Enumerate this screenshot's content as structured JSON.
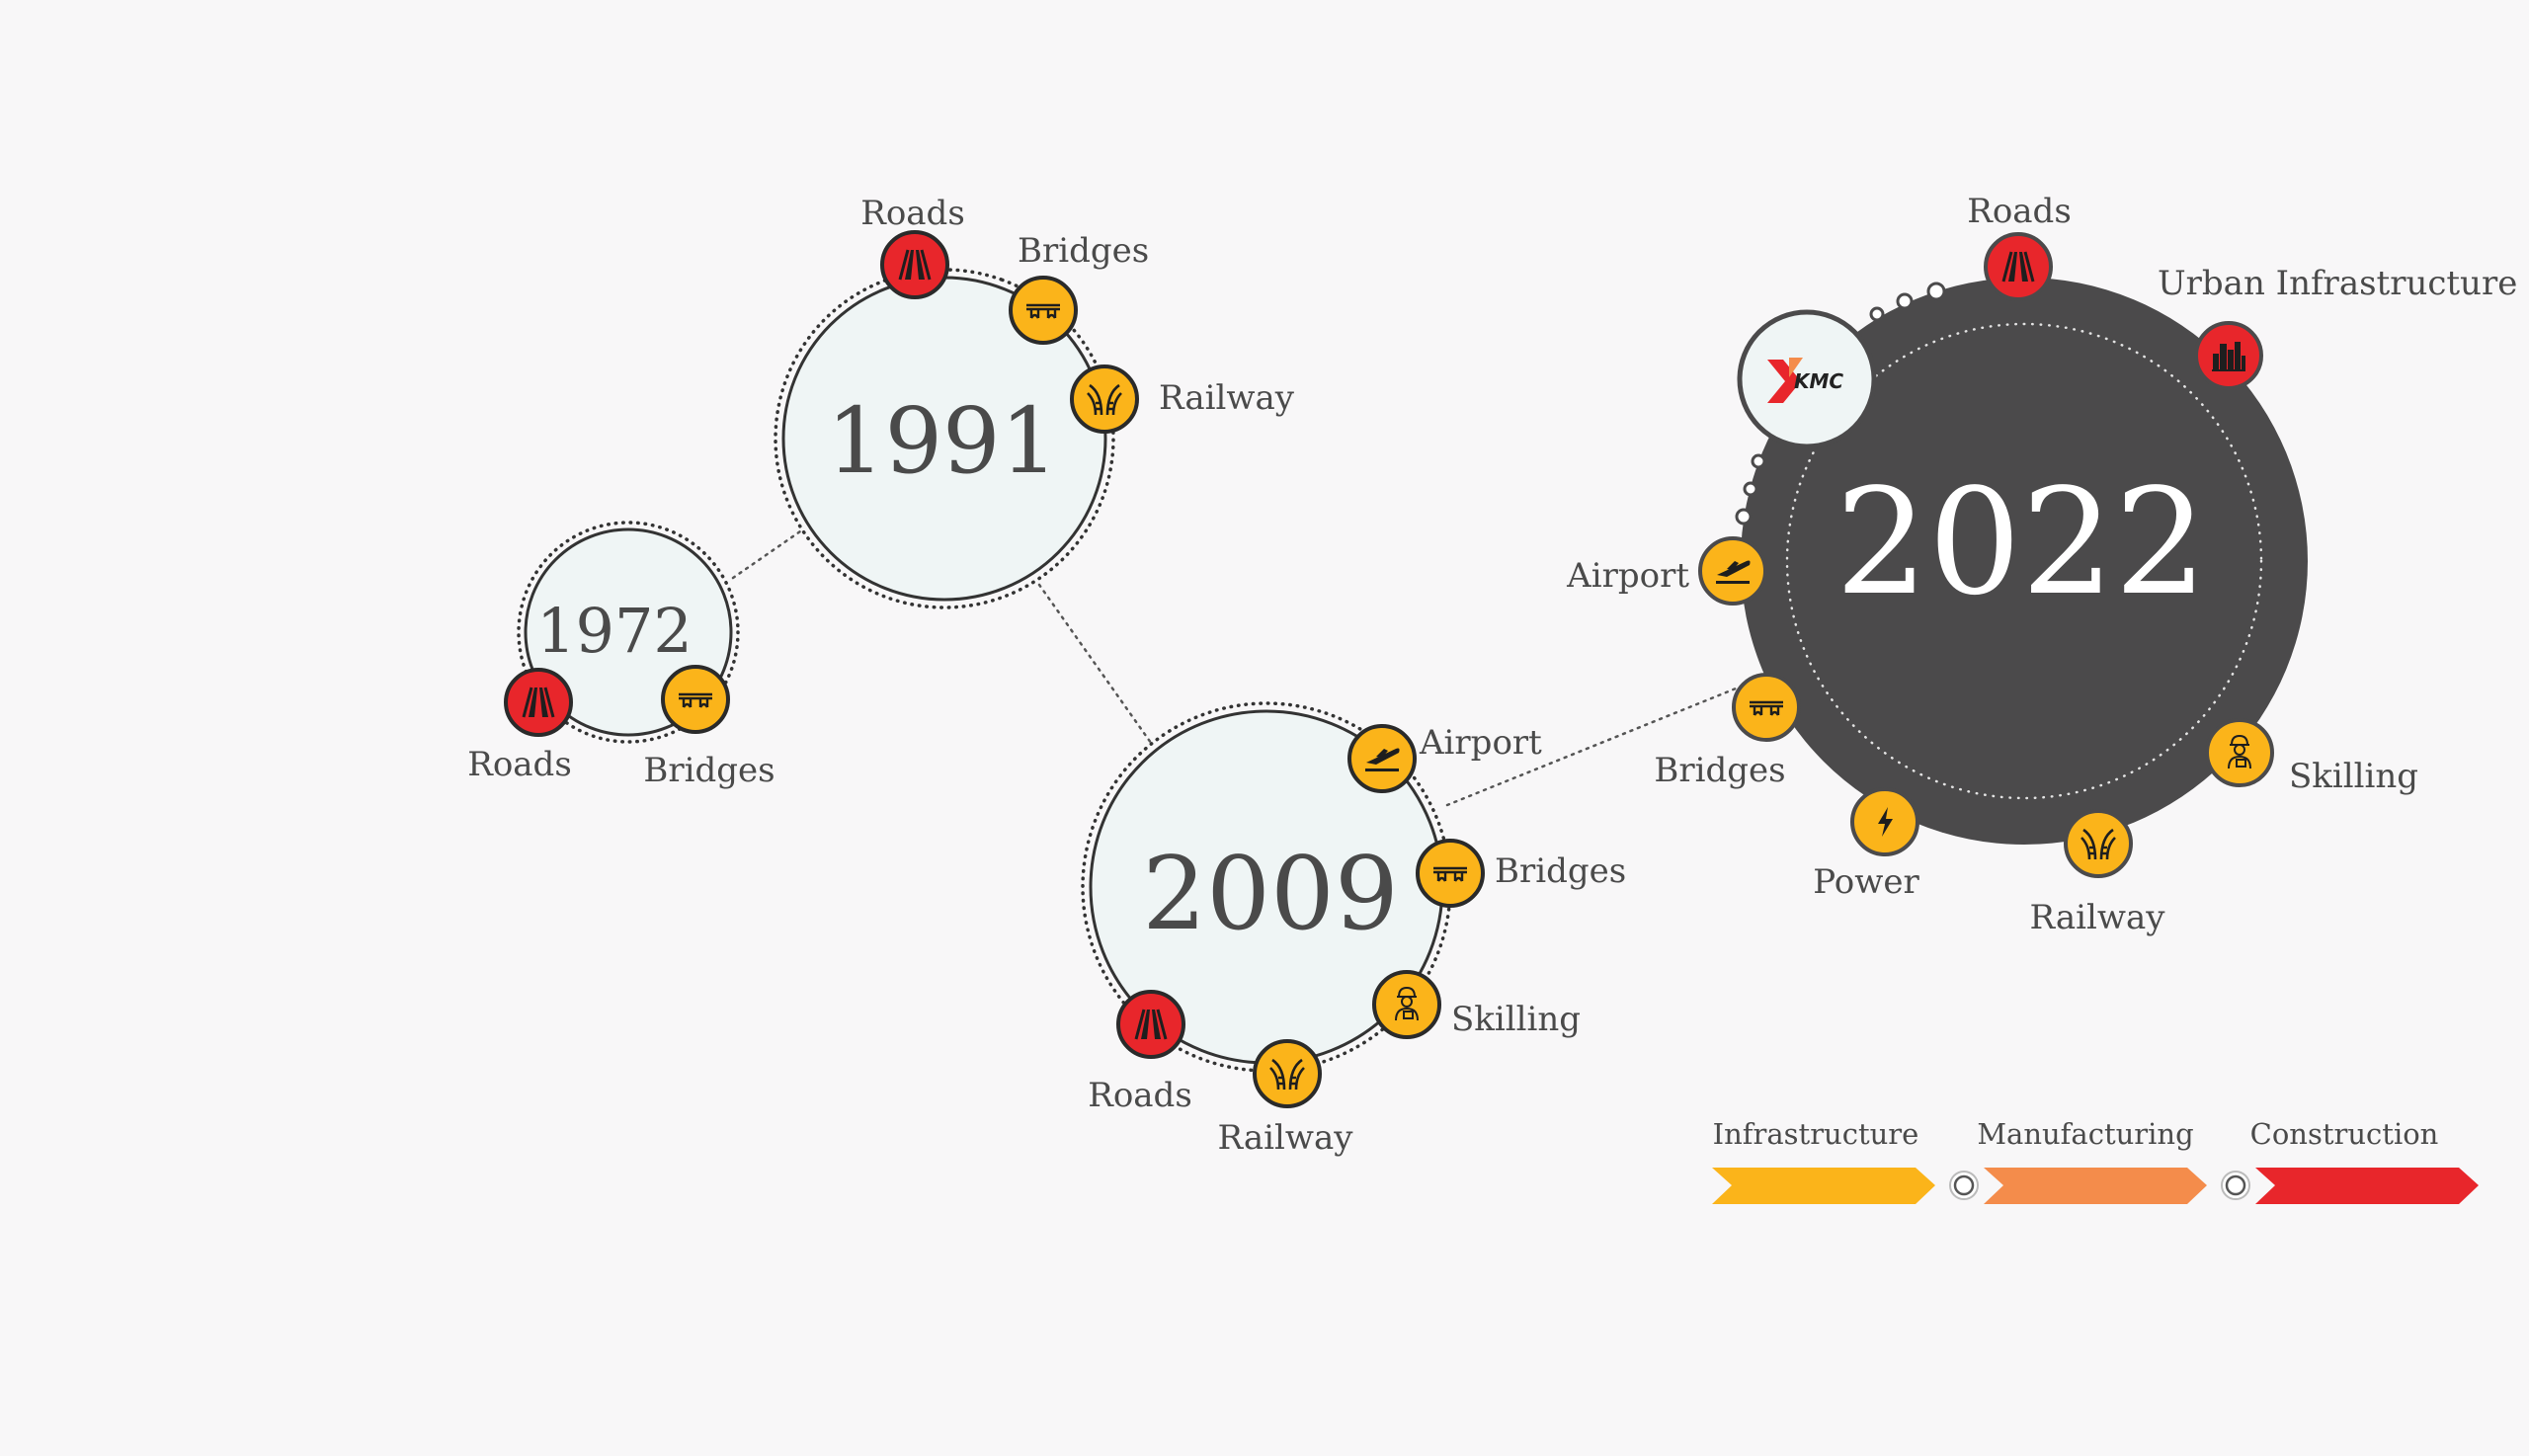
{
  "colors": {
    "background": "#f8f7f8",
    "bubble_light": "#eff5f5",
    "bubble_dark": "#4b4a4b",
    "red": "#e8262b",
    "yellow": "#fbb41a",
    "orange": "#f48c4b",
    "text": "#4a4a4a"
  },
  "timeline": [
    {
      "year": "1972",
      "theme": "light",
      "sectors": [
        {
          "label": "Roads",
          "icon": "road-icon",
          "color": "red"
        },
        {
          "label": "Bridges",
          "icon": "bridge-icon",
          "color": "yellow"
        }
      ]
    },
    {
      "year": "1991",
      "theme": "light",
      "sectors": [
        {
          "label": "Roads",
          "icon": "road-icon",
          "color": "red"
        },
        {
          "label": "Bridges",
          "icon": "bridge-icon",
          "color": "yellow"
        },
        {
          "label": "Railway",
          "icon": "railway-icon",
          "color": "yellow"
        }
      ]
    },
    {
      "year": "2009",
      "theme": "light",
      "sectors": [
        {
          "label": "Airport",
          "icon": "airport-icon",
          "color": "yellow"
        },
        {
          "label": "Bridges",
          "icon": "bridge-icon",
          "color": "yellow"
        },
        {
          "label": "Skilling",
          "icon": "worker-icon",
          "color": "yellow"
        },
        {
          "label": "Railway",
          "icon": "railway-icon",
          "color": "yellow"
        },
        {
          "label": "Roads",
          "icon": "road-icon",
          "color": "red"
        }
      ]
    },
    {
      "year": "2022",
      "theme": "dark",
      "logo": "KMC",
      "sectors": [
        {
          "label": "Roads",
          "icon": "road-icon",
          "color": "red"
        },
        {
          "label": "Urban Infrastructure",
          "icon": "city-icon",
          "color": "red"
        },
        {
          "label": "Airport",
          "icon": "airport-icon",
          "color": "yellow"
        },
        {
          "label": "Bridges",
          "icon": "bridge-icon",
          "color": "yellow"
        },
        {
          "label": "Power",
          "icon": "power-icon",
          "color": "yellow"
        },
        {
          "label": "Railway",
          "icon": "railway-icon",
          "color": "yellow"
        },
        {
          "label": "Skilling",
          "icon": "worker-icon",
          "color": "yellow"
        }
      ]
    }
  ],
  "legend": [
    {
      "label": "Infrastructure",
      "color": "yellow"
    },
    {
      "label": "Manufacturing",
      "color": "orange"
    },
    {
      "label": "Construction",
      "color": "red"
    }
  ]
}
